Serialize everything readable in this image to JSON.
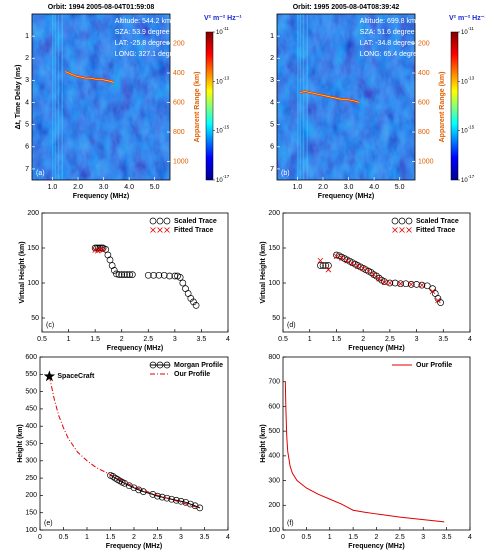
{
  "chart_data": [
    {
      "type": "image",
      "title": "Orbit: 1994  2005-08-04T01:59:08",
      "xlabel": "Frequency (MHz)",
      "ylabel": "Δt, Time Delay (ms)",
      "y2label": "Apparent Range (km)",
      "panel_label": "(a)",
      "annotations": [
        "Altitude: 544.2 km",
        "SZA: 53.9 degree",
        "LAT: -25.8 degree",
        "LONG: 327.1 degree"
      ],
      "xlim": [
        0.2,
        5.6
      ],
      "xticks": [
        {
          "value": 1,
          "label": "1.0"
        },
        {
          "value": 2,
          "label": "2.0"
        },
        {
          "value": 3,
          "label": "3.0"
        },
        {
          "value": 4,
          "label": "4.0"
        },
        {
          "value": 5,
          "label": "5.0"
        }
      ],
      "ylim": [
        0,
        7.5
      ],
      "y_inverted": true,
      "yticks": [
        1,
        2,
        3,
        4,
        5,
        6,
        7
      ],
      "y2lim": [
        0,
        1125
      ],
      "y2ticks": [
        200,
        400,
        600,
        800,
        1000
      ],
      "y2color": "#e06000",
      "colorbar": {
        "label": "V² m⁻² Hz⁻¹",
        "log": true,
        "lim": [
          1e-17,
          1e-11
        ],
        "ticks": [
          {
            "value": 1e-11,
            "label": "10",
            "exponent": "-11"
          },
          {
            "value": 1e-13,
            "label": "10",
            "exponent": "-13"
          },
          {
            "value": 1e-15,
            "label": "10",
            "exponent": "-15"
          },
          {
            "value": 1e-17,
            "label": "10",
            "exponent": "-17"
          }
        ]
      },
      "trace": {
        "x": [
          1.5,
          1.7,
          1.9,
          2.1,
          2.3,
          2.5,
          2.7,
          2.9,
          3.1,
          3.3,
          3.4
        ],
        "values": [
          2.6,
          2.7,
          2.8,
          2.85,
          2.9,
          2.9,
          2.95,
          2.95,
          3.0,
          3.05,
          3.1
        ]
      }
    },
    {
      "type": "image",
      "title": "Orbit: 1995  2005-08-04T08:39:42",
      "xlabel": "Frequency (MHz)",
      "panel_label": "(b)",
      "annotations": [
        "Altitude: 699.8 km",
        "SZA: 51.6 degree",
        "LAT: -34.8 degree",
        "LONG: 65.4 degree"
      ],
      "xlim": [
        0.2,
        5.6
      ],
      "xticks": [
        {
          "value": 1,
          "label": "1.0"
        },
        {
          "value": 2,
          "label": "2.0"
        },
        {
          "value": 3,
          "label": "3.0"
        },
        {
          "value": 4,
          "label": "4.0"
        },
        {
          "value": 5,
          "label": "5.0"
        }
      ],
      "ylim": [
        0,
        7.5
      ],
      "y_inverted": true,
      "yticks": [
        1,
        2,
        3,
        4,
        5,
        6,
        7
      ],
      "y2lim": [
        0,
        1125
      ],
      "y2ticks": [
        200,
        400,
        600,
        800,
        1000
      ],
      "y2color": "#e06000",
      "y2label": "Apparent Range (km)",
      "colorbar": {
        "label": "V² m⁻² Hz⁻¹",
        "log": true,
        "lim": [
          1e-17,
          1e-11
        ],
        "ticks": [
          {
            "value": 1e-11,
            "label": "10",
            "exponent": "-11"
          },
          {
            "value": 1e-13,
            "label": "10",
            "exponent": "-13"
          },
          {
            "value": 1e-15,
            "label": "10",
            "exponent": "-15"
          },
          {
            "value": 1e-17,
            "label": "10",
            "exponent": "-17"
          }
        ]
      },
      "trace": {
        "x": [
          1.1,
          1.3,
          1.5,
          1.7,
          1.9,
          2.1,
          2.3,
          2.5,
          2.7,
          2.9,
          3.1,
          3.3,
          3.4
        ],
        "values": [
          3.55,
          3.5,
          3.55,
          3.6,
          3.65,
          3.7,
          3.75,
          3.8,
          3.85,
          3.85,
          3.9,
          3.95,
          4.0
        ]
      }
    },
    {
      "type": "scatter",
      "xlabel": "Frequency (MHz)",
      "ylabel": "Virtual Height (km)",
      "panel_label": "(c)",
      "xlim": [
        0.5,
        4
      ],
      "xticks": [
        0.5,
        1,
        1.5,
        2,
        2.5,
        3,
        3.5,
        4
      ],
      "ylim": [
        30,
        200
      ],
      "yticks": [
        50,
        100,
        150,
        200
      ],
      "legend": "upper right",
      "series": [
        {
          "name": "Scaled Trace",
          "color": "#000000",
          "marker": "o",
          "x": [
            1.5,
            1.53,
            1.56,
            1.59,
            1.62,
            1.65,
            1.7,
            1.74,
            1.78,
            1.82,
            1.86,
            1.9,
            1.95,
            2.0,
            2.05,
            2.1,
            2.15,
            2.2,
            2.5,
            2.6,
            2.7,
            2.8,
            2.9,
            3.0,
            3.05,
            3.1,
            3.15,
            3.2,
            3.25,
            3.3,
            3.35,
            3.4
          ],
          "values": [
            150,
            150,
            150,
            150,
            150,
            150,
            148,
            140,
            133,
            125,
            118,
            113,
            112,
            112,
            112,
            112,
            112,
            112,
            111,
            111,
            111,
            111,
            110,
            110,
            110,
            108,
            100,
            92,
            85,
            78,
            73,
            68
          ]
        },
        {
          "name": "Fitted Trace",
          "color": "#e00000",
          "marker": "x",
          "x": [
            1.5,
            1.55,
            1.6,
            1.65
          ],
          "values": [
            147,
            146,
            148,
            147
          ]
        }
      ]
    },
    {
      "type": "scatter",
      "xlabel": "Frequency (MHz)",
      "ylabel": "Virtual Height (km)",
      "panel_label": "(d)",
      "xlim": [
        0.5,
        4
      ],
      "xticks": [
        0.5,
        1,
        1.5,
        2,
        2.5,
        3,
        3.5,
        4
      ],
      "ylim": [
        30,
        200
      ],
      "yticks": [
        50,
        100,
        150,
        200
      ],
      "legend": "upper right",
      "series": [
        {
          "name": "Scaled Trace",
          "color": "#000000",
          "marker": "o",
          "x": [
            1.2,
            1.25,
            1.3,
            1.35,
            1.5,
            1.55,
            1.6,
            1.65,
            1.7,
            1.75,
            1.8,
            1.85,
            1.9,
            1.95,
            2.0,
            2.05,
            2.1,
            2.15,
            2.2,
            2.25,
            2.3,
            2.35,
            2.4,
            2.5,
            2.6,
            2.7,
            2.8,
            2.9,
            3.0,
            3.1,
            3.2,
            3.3,
            3.35,
            3.4,
            3.45
          ],
          "values": [
            125,
            125,
            125,
            125,
            140,
            139,
            137,
            135,
            133,
            131,
            129,
            127,
            125,
            123,
            121,
            119,
            117,
            115,
            112,
            110,
            107,
            104,
            102,
            100,
            100,
            99,
            99,
            98,
            98,
            97,
            96,
            92,
            85,
            78,
            72
          ]
        },
        {
          "name": "Fitted Trace",
          "color": "#e00000",
          "marker": "x",
          "x": [
            1.2,
            1.35,
            1.5,
            1.6,
            1.7,
            1.8,
            1.9,
            2.0,
            2.1,
            2.2,
            2.3,
            2.4,
            2.5,
            2.7,
            2.9,
            3.1,
            3.3,
            3.4
          ],
          "values": [
            132,
            119,
            138,
            136,
            132,
            128,
            124,
            121,
            117,
            112,
            106,
            101,
            100,
            99,
            98,
            97,
            88,
            75
          ]
        }
      ]
    },
    {
      "type": "line",
      "xlabel": "Frequency (MHz)",
      "ylabel": "Height (km)",
      "panel_label": "(e)",
      "xlim": [
        0,
        4
      ],
      "xticks": [
        0,
        0.5,
        1,
        1.5,
        2,
        2.5,
        3,
        3.5,
        4
      ],
      "ylim": [
        100,
        600
      ],
      "yticks": [
        100,
        150,
        200,
        250,
        300,
        350,
        400,
        450,
        500,
        550,
        600
      ],
      "legend": "upper right",
      "point": {
        "label": "SpaceCraft",
        "x": 0.2,
        "y": 544
      },
      "series": [
        {
          "name": "Morgan Profile",
          "color": "#000000",
          "marker": "o",
          "x": [
            1.5,
            1.55,
            1.6,
            1.65,
            1.7,
            1.75,
            1.8,
            1.9,
            2.0,
            2.1,
            2.2,
            2.4,
            2.5,
            2.6,
            2.7,
            2.8,
            2.9,
            3.0,
            3.1,
            3.2,
            3.3,
            3.4
          ],
          "values": [
            258,
            255,
            250,
            246,
            242,
            238,
            235,
            228,
            222,
            216,
            211,
            203,
            198,
            195,
            192,
            189,
            186,
            183,
            180,
            175,
            170,
            164
          ]
        },
        {
          "name": "Our Profile",
          "color": "#e00000",
          "dash": "dashdot",
          "x": [
            0.2,
            0.3,
            0.4,
            0.5,
            0.6,
            0.8,
            1.0,
            1.2,
            1.5,
            2,
            2.5,
            3,
            3.4
          ],
          "values": [
            544,
            480,
            430,
            395,
            365,
            325,
            300,
            280,
            260,
            225,
            200,
            180,
            163
          ]
        }
      ]
    },
    {
      "type": "line",
      "xlabel": "Frequency (MHz)",
      "ylabel": "Height (km)",
      "panel_label": "(f)",
      "xlim": [
        0,
        4
      ],
      "xticks": [
        0,
        0.5,
        1,
        1.5,
        2,
        2.5,
        3,
        3.5,
        4
      ],
      "ylim": [
        100,
        800
      ],
      "yticks": [
        100,
        200,
        300,
        400,
        500,
        600,
        700,
        800
      ],
      "legend": "upper right",
      "series": [
        {
          "name": "Our Profile",
          "color": "#e00000",
          "x": [
            0.05,
            0.06,
            0.08,
            0.1,
            0.15,
            0.2,
            0.3,
            0.4,
            0.5,
            0.75,
            1.0,
            1.25,
            1.5,
            1.75,
            2,
            2.5,
            3,
            3.45
          ],
          "values": [
            700,
            600,
            480,
            420,
            360,
            330,
            300,
            285,
            270,
            245,
            225,
            205,
            180,
            172,
            165,
            152,
            142,
            133
          ]
        }
      ]
    }
  ]
}
